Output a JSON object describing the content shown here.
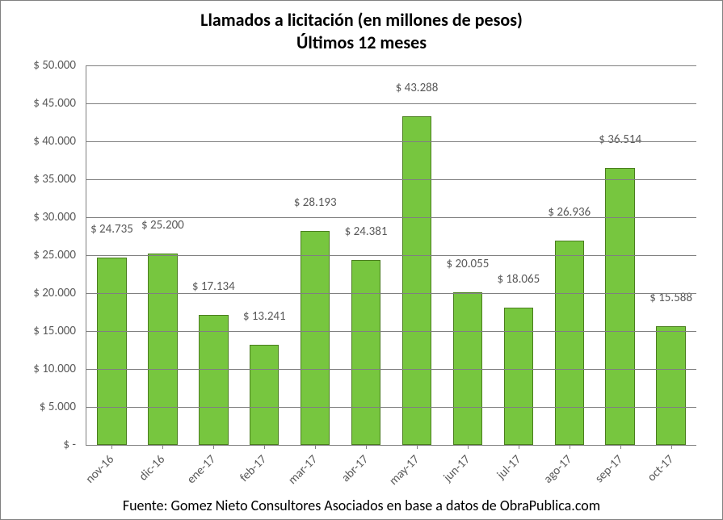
{
  "chart": {
    "type": "bar",
    "title_line1": "Llamados a licitación (en millones de pesos)",
    "title_line2": "Últimos 12 meses",
    "title_fontsize": 22,
    "title_color": "#000000",
    "background_color": "#ffffff",
    "border_color": "#808080",
    "grid_color": "#808080",
    "axis_label_color": "#595959",
    "tick_fontsize": 15,
    "data_label_fontsize": 15,
    "xtick_fontsize": 15,
    "bar_color": "#77c63f",
    "bar_border_color": "#4a7d1e",
    "bar_width": 0.58,
    "ylim": [
      0,
      50000
    ],
    "ytick_step": 5000,
    "yticks": [
      {
        "v": 0,
        "label": "$ -"
      },
      {
        "v": 5000,
        "label": "$ 5.000"
      },
      {
        "v": 10000,
        "label": "$ 10.000"
      },
      {
        "v": 15000,
        "label": "$ 15.000"
      },
      {
        "v": 20000,
        "label": "$ 20.000"
      },
      {
        "v": 25000,
        "label": "$ 25.000"
      },
      {
        "v": 30000,
        "label": "$ 30.000"
      },
      {
        "v": 35000,
        "label": "$ 35.000"
      },
      {
        "v": 40000,
        "label": "$ 40.000"
      },
      {
        "v": 45000,
        "label": "$ 45.000"
      },
      {
        "v": 50000,
        "label": "$ 50.000"
      }
    ],
    "categories": [
      "nov-16",
      "dic-16",
      "ene-17",
      "feb-17",
      "mar-17",
      "abr-17",
      "may-17",
      "jun-17",
      "jul-17",
      "ago-17",
      "sep-17",
      "oct-17"
    ],
    "values": [
      24735,
      25200,
      17134,
      13241,
      28193,
      24381,
      43288,
      20055,
      18065,
      26936,
      36514,
      15588
    ],
    "value_labels": [
      "$ 24.735",
      "$ 25.200",
      "$ 17.134",
      "$ 13.241",
      "$ 28.193",
      "$ 24.381",
      "$ 43.288",
      "$ 20.055",
      "$ 18.065",
      "$ 26.936",
      "$ 36.514",
      "$ 15.588"
    ],
    "source": "Fuente: Gomez Nieto Consultores Asociados en base a datos de ObraPublica.com",
    "source_fontsize": 18
  }
}
